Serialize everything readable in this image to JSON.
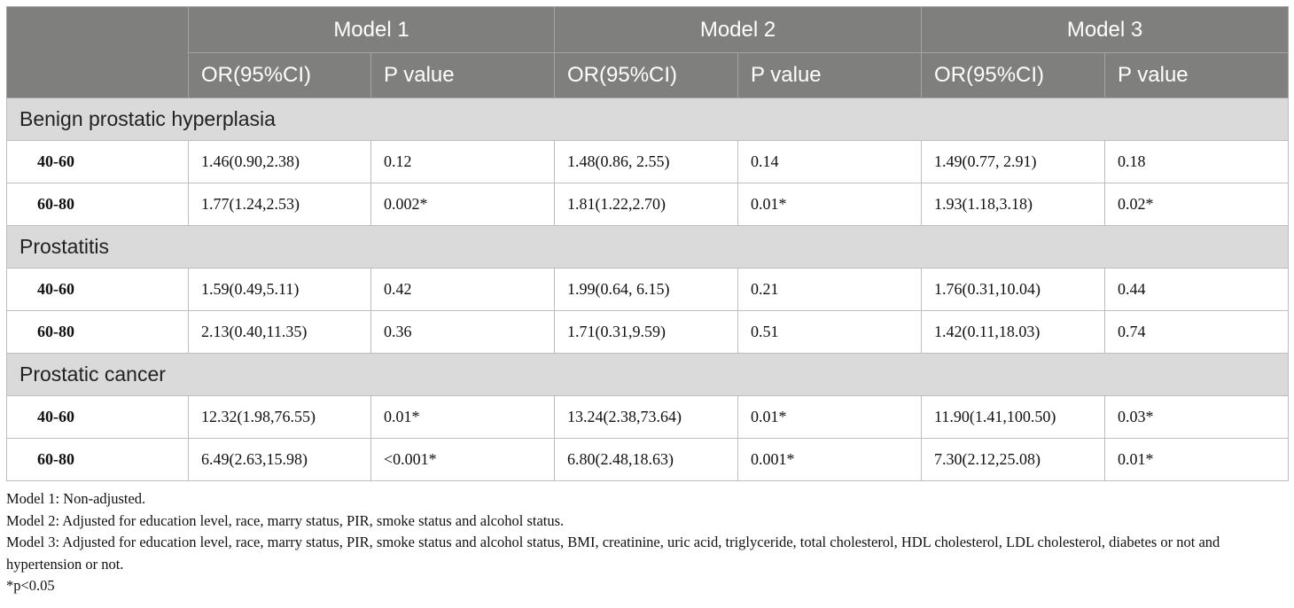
{
  "header": {
    "models": [
      "Model 1",
      "Model 2",
      "Model 3"
    ],
    "or_label": "OR(95%CI)",
    "p_label": "P value"
  },
  "groups": [
    {
      "name": "Benign prostatic hyperplasia",
      "rows": [
        {
          "age": "40-60",
          "cells": [
            "1.46(0.90,2.38)",
            "0.12",
            "1.48(0.86, 2.55)",
            "0.14",
            "1.49(0.77, 2.91)",
            "0.18"
          ]
        },
        {
          "age": "60-80",
          "cells": [
            "1.77(1.24,2.53)",
            "0.002*",
            "1.81(1.22,2.70)",
            "0.01*",
            "1.93(1.18,3.18)",
            "0.02*"
          ]
        }
      ]
    },
    {
      "name": "Prostatitis",
      "rows": [
        {
          "age": "40-60",
          "cells": [
            "1.59(0.49,5.11)",
            "0.42",
            "1.99(0.64, 6.15)",
            "0.21",
            "1.76(0.31,10.04)",
            "0.44"
          ]
        },
        {
          "age": "60-80",
          "cells": [
            "2.13(0.40,11.35)",
            "0.36",
            "1.71(0.31,9.59)",
            "0.51",
            "1.42(0.11,18.03)",
            "0.74"
          ]
        }
      ]
    },
    {
      "name": "Prostatic cancer",
      "rows": [
        {
          "age": "40-60",
          "cells": [
            "12.32(1.98,76.55)",
            "0.01*",
            "13.24(2.38,73.64)",
            "0.01*",
            "11.90(1.41,100.50)",
            "0.03*"
          ]
        },
        {
          "age": "60-80",
          "cells": [
            "6.49(2.63,15.98)",
            "<0.001*",
            "6.80(2.48,18.63)",
            "0.001*",
            "7.30(2.12,25.08)",
            "0.01*"
          ]
        }
      ]
    }
  ],
  "notes": [
    "Model 1: Non-adjusted.",
    "Model 2: Adjusted for education level, race, marry status, PIR, smoke status and alcohol status.",
    "Model 3: Adjusted for education level, race, marry status, PIR, smoke status and alcohol status, BMI, creatinine, uric acid, triglyceride, total cholesterol, HDL cholesterol, LDL cholesterol, diabetes or not and hypertension or not.",
    "*p<0.05"
  ]
}
